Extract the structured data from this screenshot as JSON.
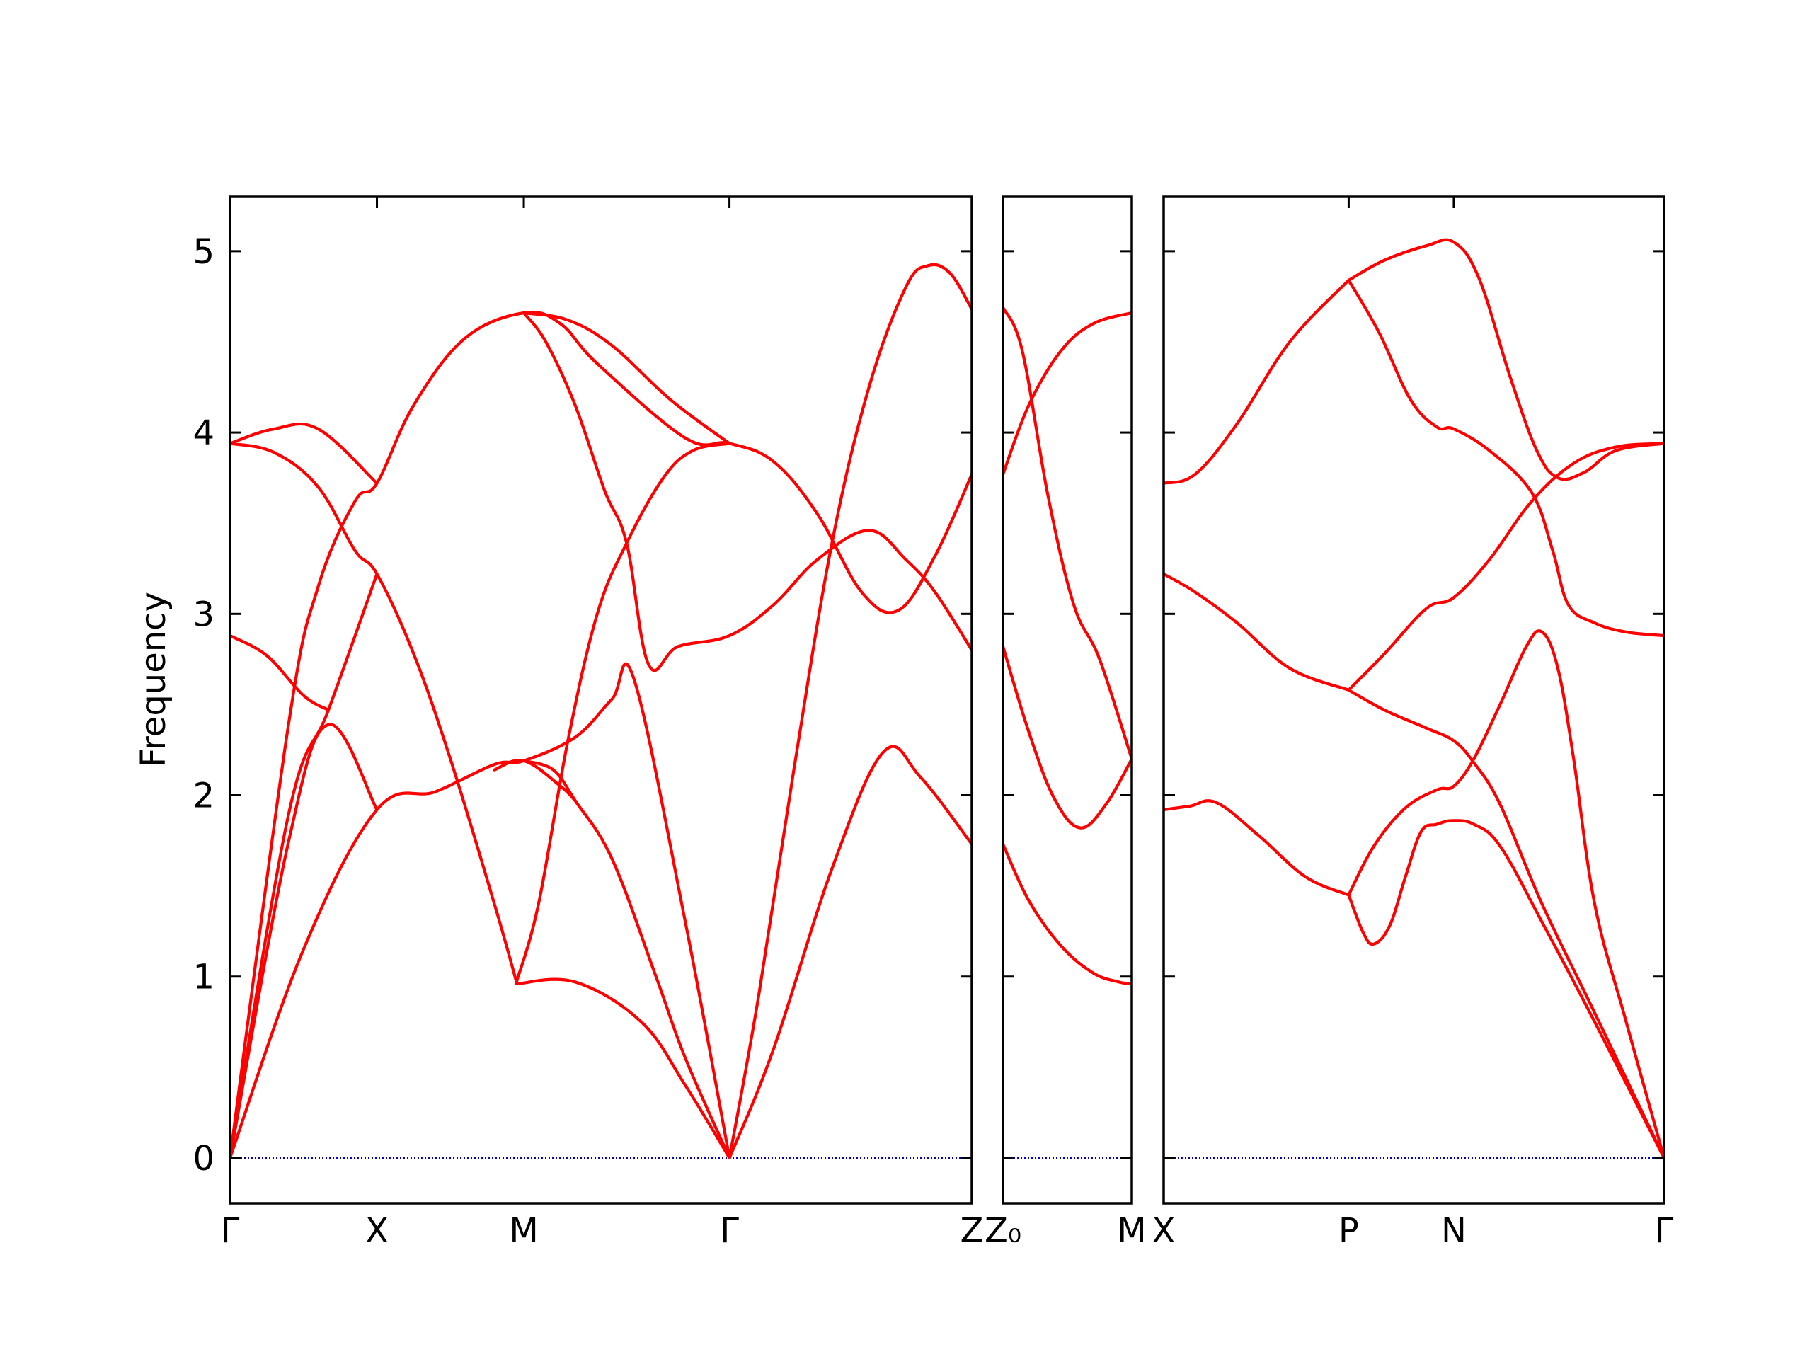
{
  "chart_data": {
    "type": "line",
    "ylabel": "Frequency",
    "ylim": [
      -0.25,
      5.3
    ],
    "yticks": [
      0,
      1,
      2,
      3,
      4,
      5
    ],
    "colors": {
      "band": "#ff0000",
      "zero_line": "#0000cc"
    },
    "panels": [
      {
        "id": "p1",
        "xticks": [
          {
            "x": 0,
            "label": "Γ"
          },
          {
            "x": 1,
            "label": "X"
          },
          {
            "x": 2,
            "label": "M"
          },
          {
            "x": 3.4,
            "label": "Γ"
          },
          {
            "x": 5.05,
            "label": "Z"
          }
        ],
        "xlim": [
          0,
          5.05
        ],
        "bands": [
          [
            [
              0,
              0
            ],
            [
              0.5,
              1.15
            ],
            [
              1,
              1.92
            ],
            [
              1.4,
              2.02
            ],
            [
              1.8,
              2.17
            ],
            [
              2,
              2.19
            ],
            [
              2.35,
              2.32
            ],
            [
              2.6,
              2.53
            ],
            [
              2.75,
              2.64
            ],
            [
              3.1,
              1.3
            ],
            [
              3.4,
              0
            ]
          ],
          [
            [
              0,
              0
            ],
            [
              0.4,
              1.75
            ],
            [
              0.67,
              2.39
            ],
            [
              1,
              1.92
            ]
          ],
          [
            [
              0,
              0
            ],
            [
              0.4,
              1.9
            ],
            [
              0.67,
              2.47
            ],
            [
              1,
              3.22
            ]
          ],
          [
            [
              0,
              2.88
            ],
            [
              0.25,
              2.77
            ],
            [
              0.5,
              2.55
            ],
            [
              0.67,
              2.47
            ]
          ],
          [
            [
              0,
              0
            ],
            [
              0.4,
              2.4
            ],
            [
              0.6,
              3.15
            ],
            [
              0.85,
              3.62
            ],
            [
              1,
              3.72
            ],
            [
              1.25,
              4.15
            ],
            [
              1.6,
              4.52
            ],
            [
              2,
              4.66
            ],
            [
              2.25,
              4.6
            ],
            [
              2.5,
              4.38
            ],
            [
              3.1,
              3.97
            ],
            [
              3.4,
              3.94
            ],
            [
              3.7,
              3.84
            ],
            [
              4.0,
              3.55
            ],
            [
              4.3,
              3.12
            ],
            [
              4.55,
              3.02
            ],
            [
              4.8,
              3.32
            ],
            [
              5.05,
              3.77
            ]
          ],
          [
            [
              0,
              3.94
            ],
            [
              0.3,
              4.02
            ],
            [
              0.6,
              4.02
            ],
            [
              1,
              3.72
            ]
          ],
          [
            [
              0,
              3.94
            ],
            [
              0.3,
              3.89
            ],
            [
              0.6,
              3.7
            ],
            [
              0.85,
              3.35
            ],
            [
              1,
              3.22
            ],
            [
              1.25,
              2.78
            ],
            [
              1.5,
              2.2
            ],
            [
              1.8,
              1.4
            ],
            [
              1.95,
              0.97
            ]
          ],
          [
            [
              1.95,
              0.97
            ],
            [
              2.1,
              1.4
            ],
            [
              2.3,
              2.3
            ],
            [
              2.5,
              3.0
            ],
            [
              2.7,
              3.39
            ],
            [
              2.95,
              3.75
            ],
            [
              3.15,
              3.9
            ],
            [
              3.4,
              3.94
            ]
          ],
          [
            [
              2,
              4.66
            ],
            [
              2.15,
              4.5
            ],
            [
              2.35,
              4.15
            ],
            [
              2.55,
              3.68
            ],
            [
              2.7,
              3.39
            ],
            [
              2.85,
              2.72
            ],
            [
              3.05,
              2.82
            ],
            [
              3.4,
              2.88
            ],
            [
              3.7,
              3.05
            ],
            [
              4.0,
              3.3
            ],
            [
              4.35,
              3.46
            ],
            [
              4.6,
              3.3
            ],
            [
              4.8,
              3.12
            ],
            [
              5.05,
              2.8
            ]
          ],
          [
            [
              1.95,
              0.96
            ],
            [
              2.35,
              0.97
            ],
            [
              2.8,
              0.75
            ],
            [
              3.1,
              0.4
            ],
            [
              3.4,
              0
            ]
          ],
          [
            [
              3.4,
              0
            ],
            [
              3.7,
              0.6
            ],
            [
              4.1,
              1.6
            ],
            [
              4.45,
              2.24
            ],
            [
              4.7,
              2.1
            ],
            [
              5.05,
              1.73
            ]
          ],
          [
            [
              3.4,
              0
            ],
            [
              3.6,
              0.9
            ],
            [
              3.85,
              2.2
            ],
            [
              4.1,
              3.4
            ],
            [
              4.35,
              4.25
            ],
            [
              4.6,
              4.8
            ],
            [
              4.75,
              4.92
            ],
            [
              4.9,
              4.88
            ],
            [
              5.05,
              4.68
            ]
          ],
          [
            [
              2,
              2.19
            ],
            [
              2.2,
              2.14
            ],
            [
              2.35,
              1.97
            ],
            [
              2.6,
              1.65
            ],
            [
              2.9,
              1.0
            ],
            [
              3.1,
              0.55
            ],
            [
              3.4,
              0
            ]
          ],
          [
            [
              2,
              4.66
            ],
            [
              2.3,
              4.62
            ],
            [
              2.6,
              4.48
            ],
            [
              3.0,
              4.18
            ],
            [
              3.4,
              3.94
            ]
          ],
          [
            [
              1.8,
              2.14
            ],
            [
              2.0,
              2.19
            ],
            [
              2.25,
              2.05
            ],
            [
              2.35,
              1.97
            ]
          ]
        ]
      },
      {
        "id": "p2",
        "xticks": [
          {
            "x": 0,
            "label": "Z₀"
          },
          {
            "x": 1,
            "label": "M"
          }
        ],
        "xlim": [
          0,
          1
        ],
        "bands": [
          [
            [
              0,
              1.73
            ],
            [
              0.2,
              1.42
            ],
            [
              0.45,
              1.17
            ],
            [
              0.7,
              1.02
            ],
            [
              0.9,
              0.97
            ],
            [
              1,
              0.96
            ]
          ],
          [
            [
              0,
              2.82
            ],
            [
              0.2,
              2.35
            ],
            [
              0.4,
              1.98
            ],
            [
              0.6,
              1.82
            ],
            [
              0.8,
              1.95
            ],
            [
              1,
              2.2
            ]
          ],
          [
            [
              0,
              4.69
            ],
            [
              0.15,
              4.45
            ],
            [
              0.35,
              3.65
            ],
            [
              0.55,
              3.05
            ],
            [
              0.75,
              2.75
            ],
            [
              1,
              2.2
            ]
          ],
          [
            [
              0,
              3.77
            ],
            [
              0.2,
              4.15
            ],
            [
              0.45,
              4.45
            ],
            [
              0.7,
              4.6
            ],
            [
              1,
              4.66
            ]
          ]
        ]
      },
      {
        "id": "p3",
        "xticks": [
          {
            "x": 0,
            "label": "X"
          },
          {
            "x": 1.76,
            "label": "P"
          },
          {
            "x": 2.76,
            "label": "N"
          },
          {
            "x": 4.76,
            "label": "Γ"
          }
        ],
        "xlim": [
          0,
          4.76
        ],
        "bands": [
          [
            [
              0,
              1.92
            ],
            [
              0.25,
              1.94
            ],
            [
              0.5,
              1.96
            ],
            [
              0.9,
              1.78
            ],
            [
              1.35,
              1.55
            ],
            [
              1.76,
              1.45
            ]
          ],
          [
            [
              1.76,
              1.45
            ],
            [
              1.9,
              1.24
            ],
            [
              2.0,
              1.18
            ],
            [
              2.15,
              1.28
            ],
            [
              2.3,
              1.55
            ],
            [
              2.45,
              1.8
            ],
            [
              2.6,
              1.84
            ],
            [
              2.75,
              1.86
            ],
            [
              2.95,
              1.84
            ],
            [
              3.2,
              1.72
            ],
            [
              3.6,
              1.3
            ],
            [
              4.1,
              0.75
            ],
            [
              4.76,
              0
            ]
          ],
          [
            [
              1.76,
              1.45
            ],
            [
              2.0,
              1.72
            ],
            [
              2.3,
              1.93
            ],
            [
              2.6,
              2.03
            ],
            [
              2.76,
              2.05
            ],
            [
              2.95,
              2.2
            ],
            [
              3.2,
              2.5
            ],
            [
              3.45,
              2.82
            ],
            [
              3.6,
              2.9
            ],
            [
              3.75,
              2.7
            ],
            [
              3.9,
              2.2
            ],
            [
              4.1,
              1.4
            ],
            [
              4.4,
              0.75
            ],
            [
              4.76,
              0
            ]
          ],
          [
            [
              0,
              3.22
            ],
            [
              0.3,
              3.12
            ],
            [
              0.7,
              2.95
            ],
            [
              1.2,
              2.7
            ],
            [
              1.76,
              2.58
            ]
          ],
          [
            [
              1.76,
              2.58
            ],
            [
              2.1,
              2.78
            ],
            [
              2.5,
              3.03
            ],
            [
              2.76,
              3.09
            ],
            [
              3.1,
              3.3
            ],
            [
              3.5,
              3.62
            ],
            [
              3.9,
              3.83
            ],
            [
              4.3,
              3.92
            ],
            [
              4.76,
              3.94
            ]
          ],
          [
            [
              1.76,
              2.58
            ],
            [
              2.1,
              2.47
            ],
            [
              2.5,
              2.37
            ],
            [
              2.76,
              2.3
            ],
            [
              2.95,
              2.18
            ],
            [
              3.2,
              1.95
            ],
            [
              3.6,
              1.4
            ],
            [
              4.1,
              0.8
            ],
            [
              4.76,
              0
            ]
          ],
          [
            [
              0,
              3.72
            ],
            [
              0.3,
              3.77
            ],
            [
              0.7,
              4.05
            ],
            [
              1.2,
              4.5
            ],
            [
              1.76,
              4.84
            ]
          ],
          [
            [
              1.76,
              4.84
            ],
            [
              2.05,
              4.55
            ],
            [
              2.35,
              4.18
            ],
            [
              2.6,
              4.03
            ],
            [
              2.76,
              4.02
            ],
            [
              3.1,
              3.9
            ],
            [
              3.5,
              3.67
            ],
            [
              3.7,
              3.35
            ],
            [
              3.85,
              3.05
            ],
            [
              4.1,
              2.95
            ],
            [
              4.4,
              2.9
            ],
            [
              4.76,
              2.88
            ]
          ],
          [
            [
              1.76,
              4.84
            ],
            [
              2.1,
              4.95
            ],
            [
              2.5,
              5.03
            ],
            [
              2.76,
              5.05
            ],
            [
              3.0,
              4.85
            ],
            [
              3.3,
              4.3
            ],
            [
              3.55,
              3.9
            ],
            [
              3.75,
              3.75
            ],
            [
              4.0,
              3.78
            ],
            [
              4.3,
              3.9
            ],
            [
              4.76,
              3.94
            ]
          ]
        ]
      }
    ]
  }
}
